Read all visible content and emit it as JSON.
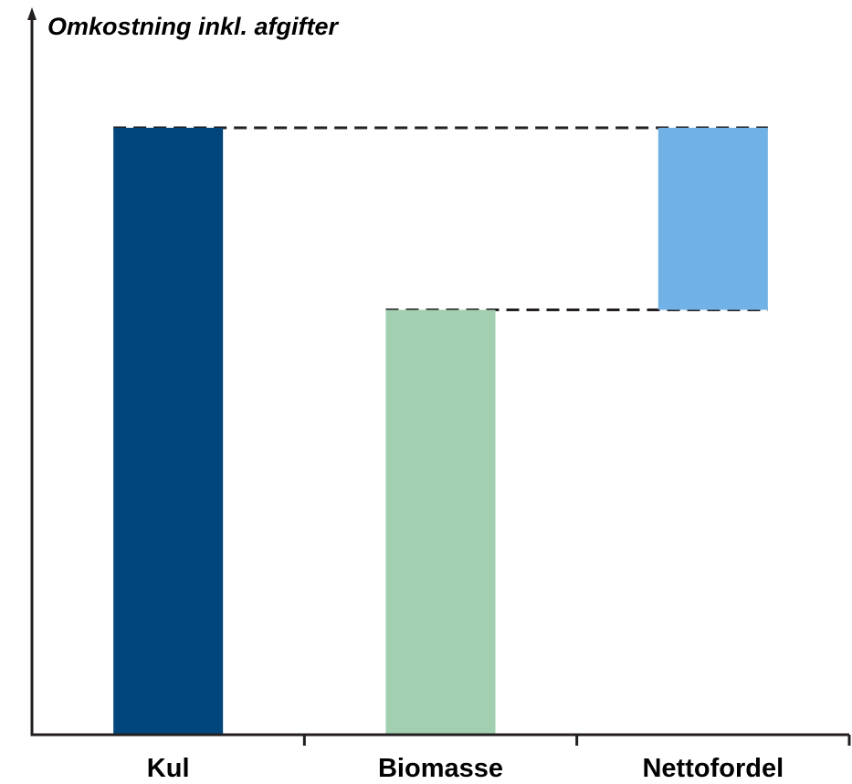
{
  "chart_data": {
    "type": "bar",
    "subtype": "waterfall",
    "ylabel": "Omkostning inkl. afgifter",
    "xlabel": "",
    "categories": [
      "Kul",
      "Biomasse",
      "Nettofordel"
    ],
    "bars": [
      {
        "category": "Kul",
        "base": 0,
        "top": 100,
        "color": "#00457c"
      },
      {
        "category": "Biomasse",
        "base": 0,
        "top": 70,
        "color": "#a1cfb0"
      },
      {
        "category": "Nettofordel",
        "base": 70,
        "top": 100,
        "color": "#70b2e5"
      }
    ],
    "reference_lines": [
      {
        "y": 100,
        "from": "Kul",
        "to": "Nettofordel",
        "style": "dashed"
      },
      {
        "y": 70,
        "from": "Biomasse",
        "to": "Nettofordel",
        "style": "dashed"
      }
    ],
    "ylim": [
      0,
      100
    ],
    "y_ticks_shown": false,
    "grid": false,
    "axis_color": "#231f20"
  }
}
